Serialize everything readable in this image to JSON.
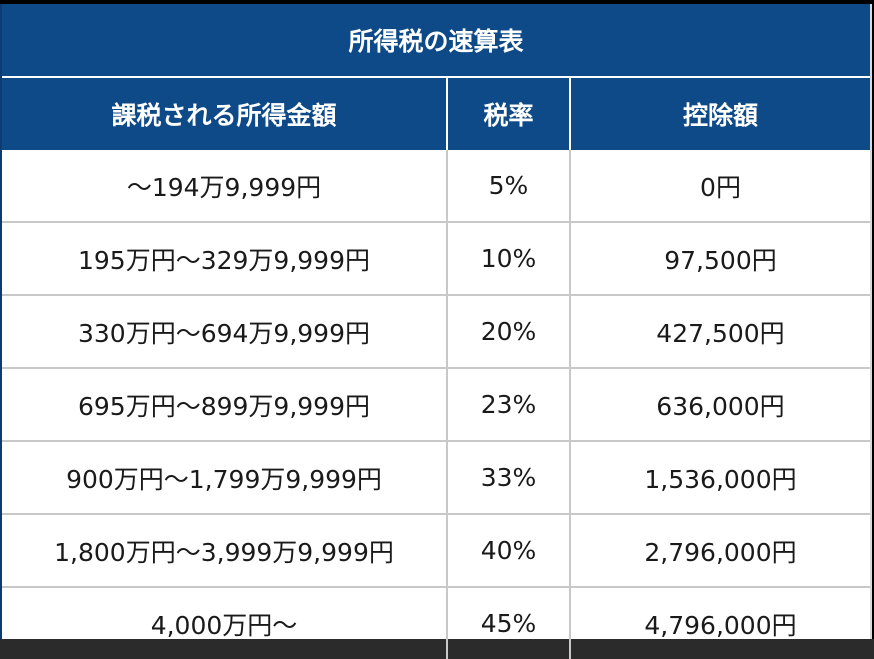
{
  "table": {
    "title": "所得税の速算表",
    "headers": [
      "課税される所得金額",
      "税率",
      "控除額"
    ],
    "rows": [
      [
        "〜194万9,999円",
        "5%",
        "0円"
      ],
      [
        "195万円〜329万9,999円",
        "10%",
        "97,500円"
      ],
      [
        "330万円〜694万9,999円",
        "20%",
        "427,500円"
      ],
      [
        "695万円〜899万9,999円",
        "23%",
        "636,000円"
      ],
      [
        "900万円〜1,799万9,999円",
        "33%",
        "1,536,000円"
      ],
      [
        "1,800万円〜3,999万9,999円",
        "40%",
        "2,796,000円"
      ],
      [
        "4,000万円〜",
        "45%",
        "4,796,000円"
      ]
    ]
  },
  "colors": {
    "header_bg": "#0e4a87",
    "header_text": "#ffffff",
    "row_border": "#c8c8c8"
  }
}
